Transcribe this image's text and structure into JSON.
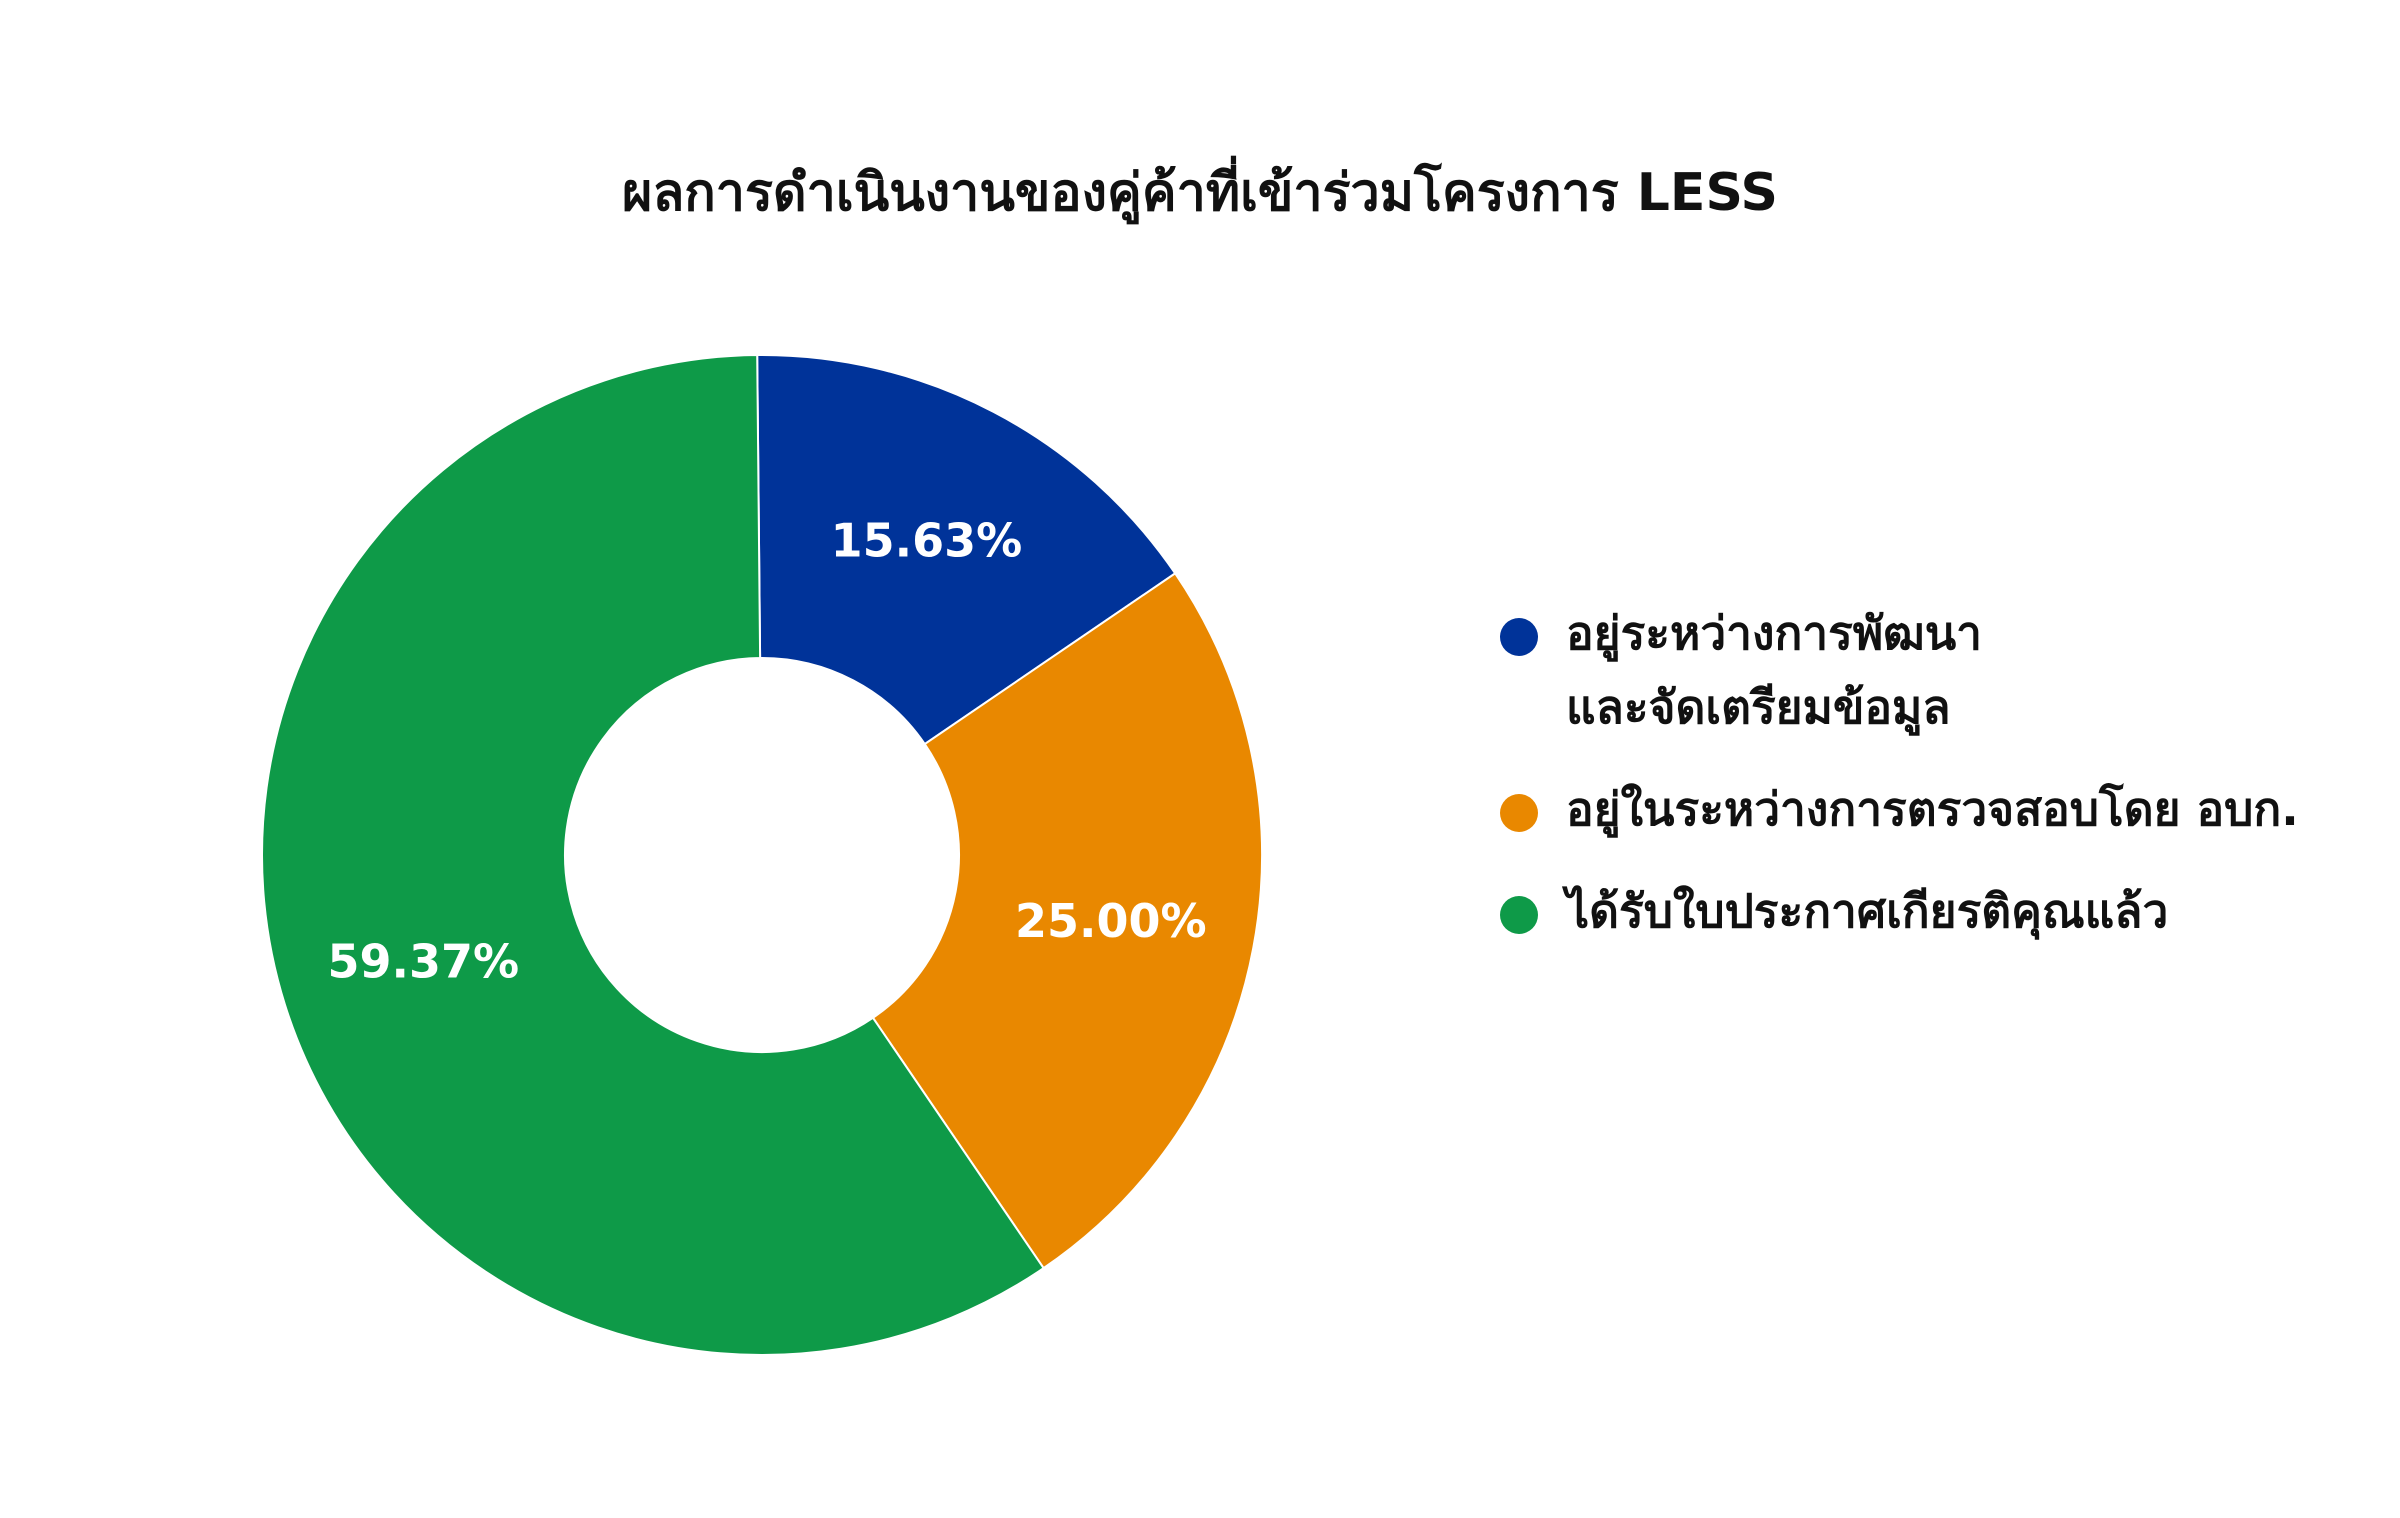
{
  "chart_data": {
    "type": "pie",
    "title": "ผลการดำเนินงานของคู่ค้าที่เข้าร่วมโครงการ LESS",
    "donut": true,
    "legend_position": "right",
    "slices": [
      {
        "label_lines": [
          "อยู่ระหว่างการพัฒนา",
          "และจัดเตรียมข้อมูล"
        ],
        "value": 15.63,
        "value_label": "15.63%",
        "color": "#003399"
      },
      {
        "label_lines": [
          "อยู่ในระหว่างการตรวจสอบโดย อบก."
        ],
        "value": 25.0,
        "value_label": "25.00%",
        "color": "#E98800"
      },
      {
        "label_lines": [
          "ได้รับใบประกาศเกียรติคุณแล้ว"
        ],
        "value": 59.37,
        "value_label": "59.37%",
        "color": "#0E9A48"
      }
    ]
  }
}
